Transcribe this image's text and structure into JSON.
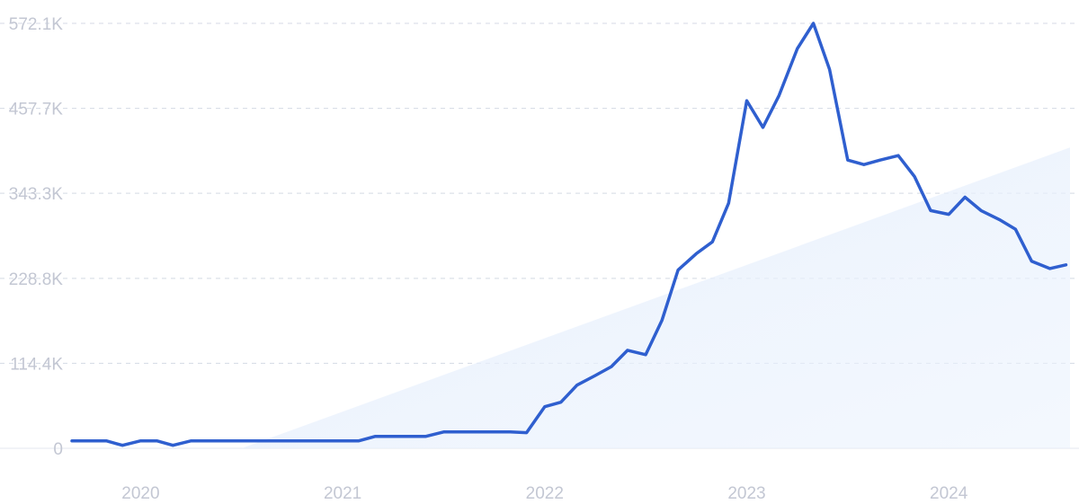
{
  "chart_data": {
    "type": "line",
    "title": "",
    "xlabel": "",
    "ylabel": "",
    "y_ticks": [
      0,
      114400,
      228800,
      343300,
      457700,
      572100
    ],
    "y_tick_labels": [
      "0",
      "114.4K",
      "228.8K",
      "343.3K",
      "457.7K",
      "572.1K"
    ],
    "x_ticks": [
      2020,
      2021,
      2022,
      2023,
      2024
    ],
    "x_tick_labels": [
      "2020",
      "2021",
      "2022",
      "2023",
      "2024"
    ],
    "xlim": [
      2019.66,
      2024.6
    ],
    "ylim": [
      0,
      572100
    ],
    "grid": true,
    "series": [
      {
        "color": "#2f5fcf",
        "x": [
          2019.66,
          2019.83,
          2019.91,
          2020.0,
          2020.08,
          2020.16,
          2020.25,
          2020.33,
          2020.41,
          2020.5,
          2020.58,
          2020.66,
          2020.75,
          2020.83,
          2020.91,
          2021.0,
          2021.08,
          2021.16,
          2021.25,
          2021.33,
          2021.41,
          2021.5,
          2021.58,
          2021.66,
          2021.75,
          2021.83,
          2021.91,
          2022.0,
          2022.08,
          2022.16,
          2022.25,
          2022.33,
          2022.41,
          2022.5,
          2022.58,
          2022.66,
          2022.75,
          2022.83,
          2022.91,
          2023.0,
          2023.08,
          2023.16,
          2023.25,
          2023.33,
          2023.41,
          2023.5,
          2023.58,
          2023.66,
          2023.75,
          2023.83,
          2023.91,
          2024.0,
          2024.08,
          2024.16,
          2024.25,
          2024.33,
          2024.41,
          2024.5,
          2024.58
        ],
        "y": [
          10000,
          10000,
          4000,
          10000,
          10000,
          4000,
          10000,
          10000,
          10000,
          10000,
          10000,
          10000,
          10000,
          10000,
          10000,
          10000,
          10000,
          16000,
          16000,
          16000,
          16000,
          22000,
          22000,
          22000,
          22000,
          22000,
          21000,
          56000,
          62000,
          85000,
          98000,
          110000,
          132000,
          126000,
          172000,
          240000,
          262000,
          278000,
          330000,
          468000,
          432000,
          475000,
          538000,
          572100,
          510000,
          388000,
          382000,
          388000,
          394000,
          366000,
          320000,
          315000,
          338000,
          320000,
          308000,
          295000,
          252000,
          242000,
          247000
        ]
      }
    ],
    "trend": {
      "color": "#dde9f9",
      "x": [
        2020.5,
        2024.6
      ],
      "y": [
        0,
        405000
      ]
    }
  }
}
